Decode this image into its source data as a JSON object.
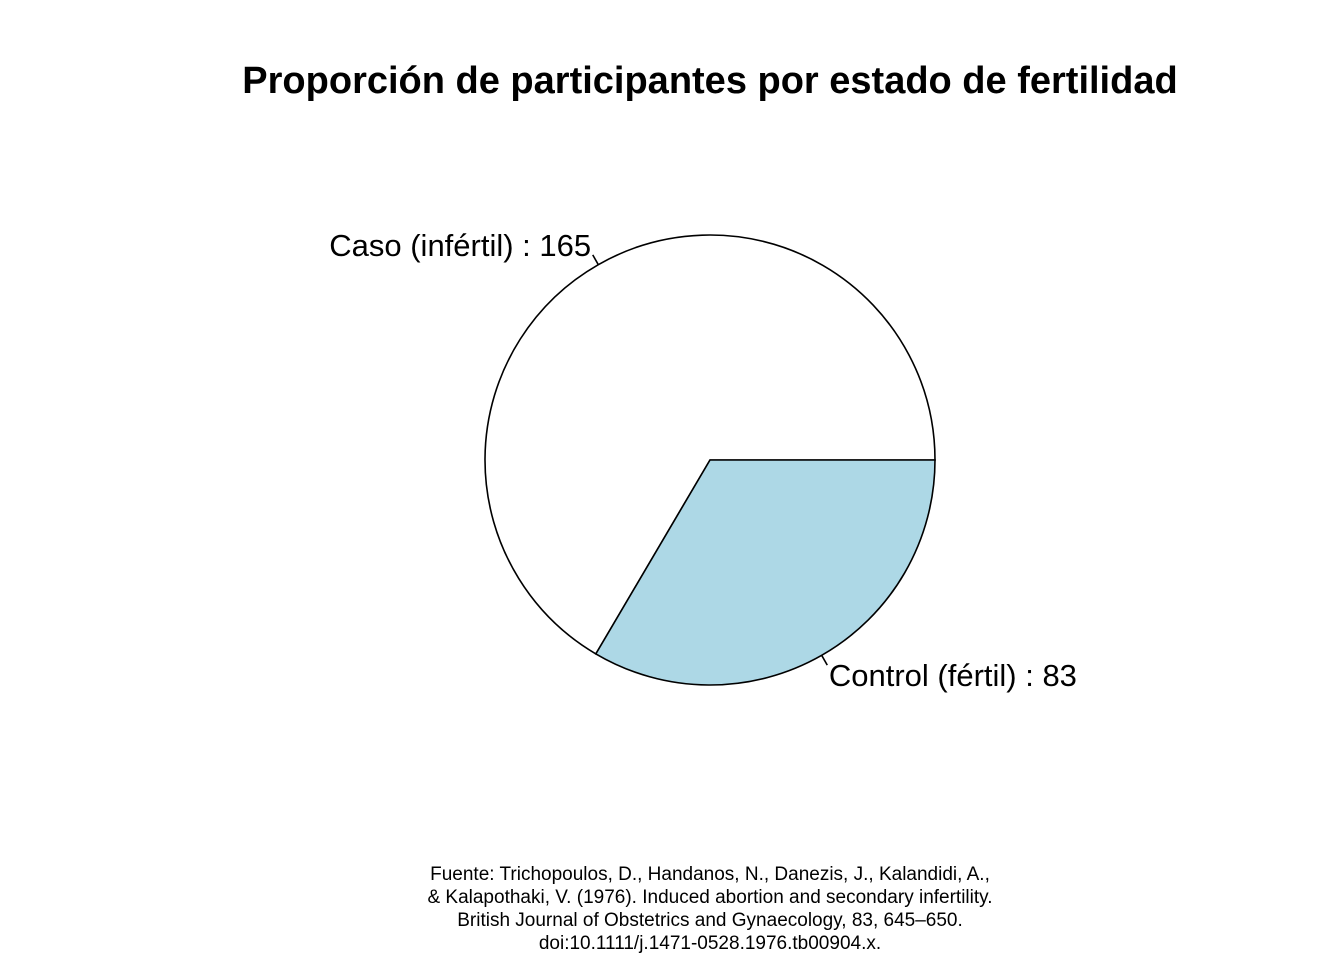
{
  "chart_data": {
    "type": "pie",
    "title": "Proporción de participantes por estado de fertilidad",
    "slices": [
      {
        "label": "Caso (infértil) : 165",
        "category": "Caso (infértil)",
        "value": 165,
        "color": "#ffffff"
      },
      {
        "label": "Control (fértil) : 83",
        "category": "Control (fértil)",
        "value": 83,
        "color": "#add8e6"
      }
    ],
    "caption_lines": [
      "Fuente: Trichopoulos, D., Handanos, N., Danezis, J., Kalandidi, A.,",
      " & Kalapothaki, V. (1976). Induced abortion and secondary infertility.",
      "British Journal of Obstetrics and Gynaecology, 83, 645–650.",
      "doi:10.1111/j.1471-0528.1976.tb00904.x."
    ],
    "start_angle_degrees": 0,
    "direction": "counterclockwise"
  }
}
